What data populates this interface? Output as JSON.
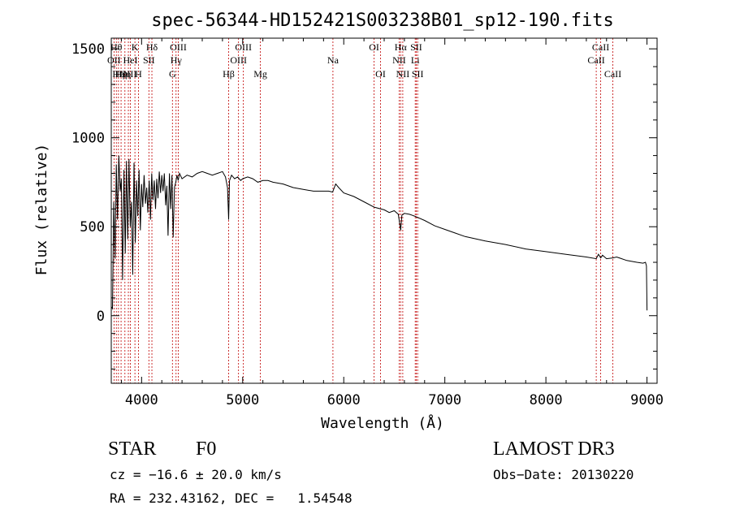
{
  "chart_data": {
    "type": "line",
    "title": "spec-56344-HD152421S003238B01_sp12-190.fits",
    "xlabel": "Wavelength (Å)",
    "ylabel": "Flux (relative)",
    "xlim": [
      3700,
      9100
    ],
    "ylim": [
      -380,
      1560
    ],
    "x_ticks": [
      4000,
      5000,
      6000,
      7000,
      8000,
      9000
    ],
    "y_ticks": [
      0,
      500,
      1000,
      1500
    ],
    "grid": false,
    "series": [
      {
        "name": "flux",
        "x": [
          3700,
          3712,
          3725,
          3738,
          3750,
          3762,
          3775,
          3788,
          3800,
          3812,
          3825,
          3838,
          3850,
          3862,
          3875,
          3888,
          3900,
          3912,
          3925,
          3938,
          3950,
          3962,
          3975,
          3988,
          4000,
          4012,
          4025,
          4038,
          4050,
          4062,
          4075,
          4088,
          4100,
          4112,
          4125,
          4138,
          4150,
          4162,
          4175,
          4188,
          4200,
          4212,
          4225,
          4238,
          4250,
          4262,
          4275,
          4288,
          4300,
          4312,
          4325,
          4338,
          4350,
          4362,
          4375,
          4400,
          4450,
          4500,
          4550,
          4600,
          4650,
          4700,
          4750,
          4800,
          4830,
          4850,
          4861,
          4870,
          4890,
          4920,
          4950,
          4980,
          5000,
          5050,
          5100,
          5150,
          5200,
          5250,
          5300,
          5400,
          5500,
          5600,
          5700,
          5800,
          5850,
          5890,
          5920,
          5950,
          6000,
          6100,
          6200,
          6300,
          6400,
          6450,
          6500,
          6540,
          6563,
          6575,
          6600,
          6650,
          6700,
          6800,
          6900,
          7000,
          7100,
          7200,
          7400,
          7600,
          7800,
          8000,
          8200,
          8400,
          8498,
          8520,
          8542,
          8560,
          8600,
          8662,
          8700,
          8800,
          8900,
          8960,
          8985,
          8995,
          9000
        ],
        "y": [
          50,
          40,
          640,
          320,
          850,
          540,
          900,
          700,
          770,
          200,
          820,
          350,
          870,
          430,
          880,
          500,
          640,
          230,
          860,
          410,
          760,
          560,
          820,
          480,
          740,
          610,
          790,
          630,
          720,
          580,
          760,
          540,
          800,
          650,
          760,
          600,
          770,
          660,
          810,
          690,
          790,
          700,
          800,
          620,
          730,
          450,
          800,
          600,
          790,
          440,
          720,
          750,
          790,
          760,
          800,
          770,
          790,
          780,
          800,
          810,
          800,
          790,
          800,
          810,
          780,
          720,
          540,
          760,
          790,
          770,
          780,
          760,
          770,
          780,
          770,
          750,
          760,
          760,
          750,
          740,
          720,
          710,
          700,
          700,
          700,
          695,
          740,
          720,
          690,
          670,
          640,
          610,
          595,
          580,
          590,
          570,
          480,
          565,
          575,
          570,
          560,
          535,
          505,
          485,
          465,
          445,
          420,
          400,
          375,
          360,
          345,
          330,
          320,
          345,
          325,
          340,
          320,
          325,
          330,
          310,
          300,
          295,
          300,
          280,
          30
        ]
      }
    ],
    "line_labels": [
      {
        "x": 3727,
        "label": "OII",
        "row": 2
      },
      {
        "x": 3750,
        "label": "Hθ",
        "row": 1
      },
      {
        "x": 3771,
        "label": "Hη",
        "row": 3
      },
      {
        "x": 3797,
        "label": "Hη",
        "row": 3
      },
      {
        "x": 3835,
        "label": "Hη",
        "row": 3
      },
      {
        "x": 3869,
        "label": "OIII",
        "row": 3
      },
      {
        "x": 3889,
        "label": "HeI",
        "row": 2
      },
      {
        "x": 3934,
        "label": "K",
        "row": 1
      },
      {
        "x": 3969,
        "label": "H",
        "row": 3
      },
      {
        "x": 4072,
        "label": "SII",
        "row": 2
      },
      {
        "x": 4102,
        "label": "Hδ",
        "row": 1
      },
      {
        "x": 4305,
        "label": "G",
        "row": 3
      },
      {
        "x": 4341,
        "label": "Hγ",
        "row": 2
      },
      {
        "x": 4363,
        "label": "OIII",
        "row": 1
      },
      {
        "x": 4861,
        "label": "Hβ",
        "row": 3
      },
      {
        "x": 4959,
        "label": "OIII",
        "row": 2
      },
      {
        "x": 5007,
        "label": "OIII",
        "row": 1
      },
      {
        "x": 5175,
        "label": "Mg",
        "row": 3
      },
      {
        "x": 5893,
        "label": "Na",
        "row": 2
      },
      {
        "x": 6300,
        "label": "OI",
        "row": 1
      },
      {
        "x": 6364,
        "label": "OI",
        "row": 3
      },
      {
        "x": 6548,
        "label": "NII",
        "row": 2
      },
      {
        "x": 6563,
        "label": "Hα",
        "row": 1
      },
      {
        "x": 6584,
        "label": "NII",
        "row": 3
      },
      {
        "x": 6707,
        "label": "Li",
        "row": 2
      },
      {
        "x": 6717,
        "label": "SII",
        "row": 1
      },
      {
        "x": 6731,
        "label": "SII",
        "row": 3
      },
      {
        "x": 8498,
        "label": "CaII",
        "row": 2
      },
      {
        "x": 8542,
        "label": "CaII",
        "row": 1
      },
      {
        "x": 8662,
        "label": "CaII",
        "row": 3
      }
    ]
  },
  "info": {
    "class": "STAR",
    "subclass": "F0",
    "survey": "LAMOST DR3",
    "cz": "cz = −16.6 ± 20.0 km/s",
    "obs_date": "Obs−Date: 20130220",
    "radec": "RA = 232.43162, DEC =   1.54548"
  },
  "colors": {
    "spectrum": "#000000",
    "line_marker": "#c00000",
    "text": "#000000",
    "background": "#ffffff"
  }
}
